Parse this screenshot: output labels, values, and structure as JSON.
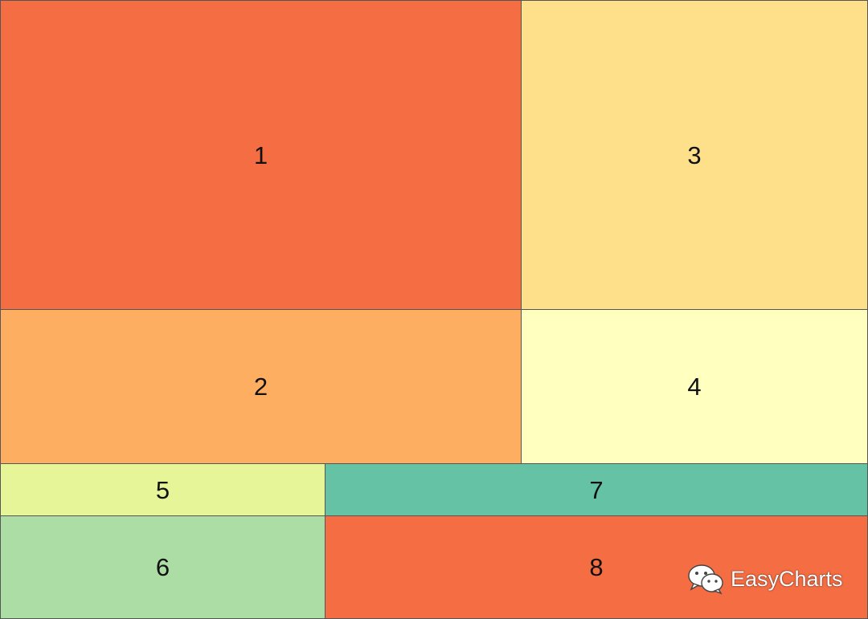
{
  "colors": {
    "c1": "#f46d43",
    "c2": "#fdae61",
    "c3": "#fee08b",
    "c4": "#ffffbf",
    "c5": "#e6f598",
    "c6": "#abdda4",
    "c7": "#66c2a5",
    "c8": "#f46d43",
    "border": "#555555"
  },
  "cells": [
    {
      "id": "c1",
      "label": "1"
    },
    {
      "id": "c2",
      "label": "2"
    },
    {
      "id": "c3",
      "label": "3"
    },
    {
      "id": "c4",
      "label": "4"
    },
    {
      "id": "c5",
      "label": "5"
    },
    {
      "id": "c6",
      "label": "6"
    },
    {
      "id": "c7",
      "label": "7"
    },
    {
      "id": "c8",
      "label": "8"
    }
  ],
  "watermark": {
    "icon": "wechat-icon",
    "text": "EasyCharts"
  }
}
